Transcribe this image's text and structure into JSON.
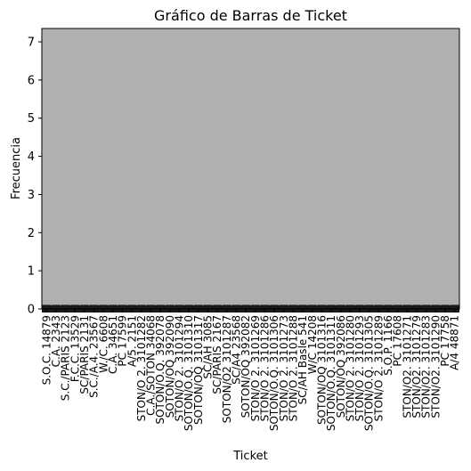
{
  "chart_data": {
    "type": "bar",
    "title": "Gráfico de Barras de Ticket",
    "xlabel": "Ticket",
    "ylabel": "Frecuencia",
    "ylim": [
      0,
      7.35
    ],
    "yticks": [
      0,
      1,
      2,
      3,
      4,
      5,
      6,
      7
    ],
    "ytick_labels": [
      "0",
      "1",
      "2",
      "3",
      "4",
      "5",
      "6",
      "7"
    ],
    "bar_color": "#b0b0b0",
    "edge_color": "#000000",
    "grid": false,
    "legend": "none",
    "categories": [
      "S.O.C. 14879",
      "C.A. 2343",
      "S.C./PARIS 2123",
      "F.C.C. 13529",
      "SC/PARIS 2131",
      "S.C./A.4. 23567",
      "W./C. 6608",
      "C.A. 34651",
      "PC 17599",
      "A/5. 2151",
      "STON/O 2. 3101282",
      "C.A./SOTON 34068",
      "SOTON/O.Q. 392078",
      "SOTON/OQ 392090",
      "STON/O 2. 3101294",
      "SOTON/O.Q. 3101310",
      "SOTON/OQ 3101317",
      "SC/AH 3085",
      "SC/PARIS 2167",
      "SOTON/O2 3101287",
      "SC/A4 23568",
      "SOTON/OQ 392082",
      "STON/O 2. 3101269",
      "STON/O 2. 3101286",
      "SOTON/O.Q. 3101306",
      "STON/O 2. 3101273",
      "STON/O 2. 3101288",
      "SC/AH Basle 541",
      "W/C 14208",
      "SOTON/OQ 3101316",
      "SOTON/O.Q. 3101311",
      "SOTON/OQ 392086",
      "STON/O 2. 3101280",
      "STON/O 2. 3101293",
      "SOTON/O.Q. 3101305",
      "STON/O 2. 3101289",
      "S.O.P. 1166",
      "PC 17608",
      "STON/O2. 3101271",
      "STON/O2. 3101279",
      "STON/O2. 3101283",
      "STON/O2. 3101290",
      "PC 17758",
      "A/4 48871"
    ],
    "values": [
      0.06,
      0.06,
      0.06,
      0.06,
      0.06,
      0.06,
      0.06,
      0.06,
      0.06,
      0.06,
      0.06,
      0.06,
      0.06,
      0.06,
      0.06,
      0.06,
      0.06,
      0.06,
      0.06,
      0.06,
      0.06,
      0.06,
      0.06,
      0.06,
      0.06,
      0.06,
      0.06,
      0.06,
      0.06,
      0.06,
      0.06,
      0.06,
      0.06,
      0.06,
      0.06,
      0.06,
      0.06,
      0.06,
      0.06,
      0.06,
      0.06,
      0.06,
      0.06,
      0.06
    ]
  }
}
